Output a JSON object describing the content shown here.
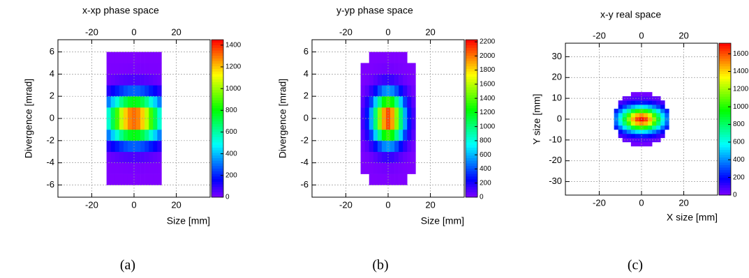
{
  "chart_data": [
    {
      "type": "heatmap",
      "title": "x-xp phase space",
      "xlabel": "Size [mm]",
      "ylabel": "Divergence [mrad]",
      "caption": "(a)",
      "x_bins": [
        -13,
        -11,
        -9,
        -7,
        -5,
        -3,
        -1,
        1,
        3,
        5,
        7,
        9,
        11,
        13
      ],
      "y_bins": [
        -6,
        -5,
        -4,
        -3,
        -2,
        -1,
        0,
        1,
        2,
        3,
        4,
        5,
        6
      ],
      "values": [
        [
          1,
          1,
          1,
          1,
          1,
          1,
          1,
          1,
          1,
          1,
          1,
          1,
          1
        ],
        [
          3,
          4,
          5,
          6,
          7,
          8,
          8,
          8,
          7,
          6,
          5,
          4,
          3
        ],
        [
          25,
          33,
          42,
          50,
          56,
          60,
          62,
          60,
          56,
          50,
          42,
          33,
          25
        ],
        [
          117,
          153,
          191,
          227,
          257,
          277,
          284,
          277,
          257,
          227,
          191,
          153,
          117
        ],
        [
          324,
          425,
          531,
          631,
          714,
          769,
          788,
          769,
          714,
          631,
          531,
          425,
          324
        ],
        [
          540,
          708,
          885,
          1052,
          1190,
          1282,
          1313,
          1282,
          1190,
          1052,
          885,
          708,
          540
        ],
        [
          540,
          708,
          885,
          1052,
          1190,
          1282,
          1313,
          1282,
          1190,
          1052,
          885,
          708,
          540
        ],
        [
          324,
          425,
          531,
          631,
          714,
          769,
          788,
          769,
          714,
          631,
          531,
          425,
          324
        ],
        [
          117,
          153,
          191,
          227,
          257,
          277,
          284,
          277,
          257,
          227,
          191,
          153,
          117
        ],
        [
          25,
          33,
          42,
          50,
          56,
          60,
          62,
          60,
          56,
          50,
          42,
          33,
          25
        ],
        [
          3,
          4,
          5,
          6,
          7,
          8,
          8,
          8,
          7,
          6,
          5,
          4,
          3
        ],
        [
          1,
          1,
          1,
          1,
          1,
          1,
          1,
          1,
          1,
          1,
          1,
          1,
          1
        ]
      ],
      "xlim": [
        -36,
        36
      ],
      "ylim": [
        -7.1,
        7.1
      ],
      "xticks": [
        -20,
        0,
        20
      ],
      "yticks": [
        -6,
        -4,
        -2,
        0,
        2,
        4,
        6
      ],
      "zlim": [
        0,
        1450
      ],
      "zticks": [
        0,
        200,
        400,
        600,
        800,
        1000,
        1200,
        1400
      ],
      "grid": true
    },
    {
      "type": "heatmap",
      "title": "y-yp phase space",
      "xlabel": "Size [mm]",
      "ylabel": "Divergence [mrad]",
      "caption": "(b)",
      "x_bins": [
        -13,
        -11,
        -9,
        -7,
        -5,
        -3,
        -1,
        1,
        3,
        5,
        7,
        9,
        11,
        13
      ],
      "y_bins": [
        -6,
        -5,
        -4,
        -3,
        -2,
        -1,
        0,
        1,
        2,
        3,
        4,
        5,
        6
      ],
      "values": [
        [
          0,
          0,
          1,
          1,
          2,
          2,
          2,
          2,
          2,
          1,
          1,
          0,
          0
        ],
        [
          1,
          3,
          7,
          12,
          17,
          22,
          24,
          22,
          17,
          12,
          7,
          3,
          1
        ],
        [
          8,
          20,
          40,
          71,
          105,
          134,
          145,
          134,
          105,
          71,
          40,
          20,
          8
        ],
        [
          31,
          74,
          152,
          267,
          398,
          506,
          548,
          506,
          398,
          267,
          152,
          74,
          31
        ],
        [
          75,
          180,
          371,
          650,
          969,
          1232,
          1335,
          1232,
          969,
          650,
          371,
          180,
          75
        ],
        [
          117,
          281,
          579,
          1013,
          1511,
          1921,
          2081,
          1921,
          1511,
          1013,
          579,
          281,
          117
        ],
        [
          117,
          281,
          579,
          1013,
          1511,
          1921,
          2081,
          1921,
          1511,
          1013,
          579,
          281,
          117
        ],
        [
          75,
          180,
          371,
          650,
          969,
          1232,
          1335,
          1232,
          969,
          650,
          371,
          180,
          75
        ],
        [
          31,
          74,
          152,
          267,
          398,
          506,
          548,
          506,
          398,
          267,
          152,
          74,
          31
        ],
        [
          8,
          20,
          40,
          71,
          105,
          134,
          145,
          134,
          105,
          71,
          40,
          20,
          8
        ],
        [
          1,
          3,
          7,
          12,
          17,
          22,
          24,
          22,
          17,
          12,
          7,
          3,
          1
        ],
        [
          0,
          0,
          1,
          1,
          2,
          2,
          2,
          2,
          2,
          1,
          1,
          0,
          0
        ]
      ],
      "xlim": [
        -36,
        36
      ],
      "ylim": [
        -7.1,
        7.1
      ],
      "xticks": [
        -20,
        0,
        20
      ],
      "yticks": [
        -6,
        -4,
        -2,
        0,
        2,
        4,
        6
      ],
      "zlim": [
        0,
        2230
      ],
      "zticks": [
        0,
        200,
        400,
        600,
        800,
        1000,
        1200,
        1400,
        1600,
        1800,
        2000,
        2200
      ],
      "grid": true
    },
    {
      "type": "heatmap",
      "title": "x-y real space",
      "xlabel": "X size [mm]",
      "ylabel": "Y size [mm]",
      "caption": "(c)",
      "x_bins": [
        -13,
        -11,
        -9,
        -7,
        -5,
        -3,
        -1,
        1,
        3,
        5,
        7,
        9,
        11,
        13
      ],
      "y_bins": [
        -13,
        -11,
        -9,
        -7,
        -5,
        -3,
        -1,
        1,
        3,
        5,
        7,
        9,
        11,
        13
      ],
      "values": [
        [
          0,
          0,
          0,
          0,
          16,
          18,
          19,
          18,
          16,
          0,
          0,
          0,
          0
        ],
        [
          0,
          0,
          39,
          52,
          64,
          72,
          75,
          72,
          64,
          52,
          39,
          0,
          0
        ],
        [
          0,
          83,
          120,
          159,
          195,
          221,
          230,
          221,
          195,
          159,
          120,
          83,
          0
        ],
        [
          0,
          199,
          288,
          383,
          469,
          531,
          553,
          531,
          469,
          383,
          288,
          199,
          0
        ],
        [
          237,
          372,
          537,
          714,
          876,
          991,
          1032,
          991,
          876,
          714,
          537,
          372,
          237
        ],
        [
          345,
          540,
          779,
          1037,
          1273,
          1439,
          1499,
          1439,
          1273,
          1037,
          779,
          540,
          345
        ],
        [
          391,
          612,
          884,
          1176,
          1443,
          1632,
          1700,
          1632,
          1443,
          1176,
          884,
          612,
          391
        ],
        [
          345,
          540,
          779,
          1037,
          1273,
          1439,
          1499,
          1439,
          1273,
          1037,
          779,
          540,
          345
        ],
        [
          237,
          372,
          537,
          714,
          876,
          991,
          1032,
          991,
          876,
          714,
          537,
          372,
          237
        ],
        [
          0,
          199,
          288,
          383,
          469,
          531,
          553,
          531,
          469,
          383,
          288,
          199,
          0
        ],
        [
          0,
          83,
          120,
          159,
          195,
          221,
          230,
          221,
          195,
          159,
          120,
          83,
          0
        ],
        [
          0,
          0,
          39,
          52,
          64,
          72,
          75,
          72,
          64,
          52,
          39,
          0,
          0
        ],
        [
          0,
          0,
          0,
          0,
          16,
          18,
          19,
          18,
          16,
          0,
          0,
          0,
          0
        ]
      ],
      "xlim": [
        -36,
        36
      ],
      "ylim": [
        -36.5,
        36.5
      ],
      "xticks": [
        -20,
        0,
        20
      ],
      "yticks": [
        -30,
        -20,
        -10,
        0,
        10,
        20,
        30
      ],
      "zlim": [
        0,
        1720
      ],
      "zticks": [
        0,
        200,
        400,
        600,
        800,
        1000,
        1200,
        1400,
        1600
      ],
      "grid": true
    }
  ]
}
